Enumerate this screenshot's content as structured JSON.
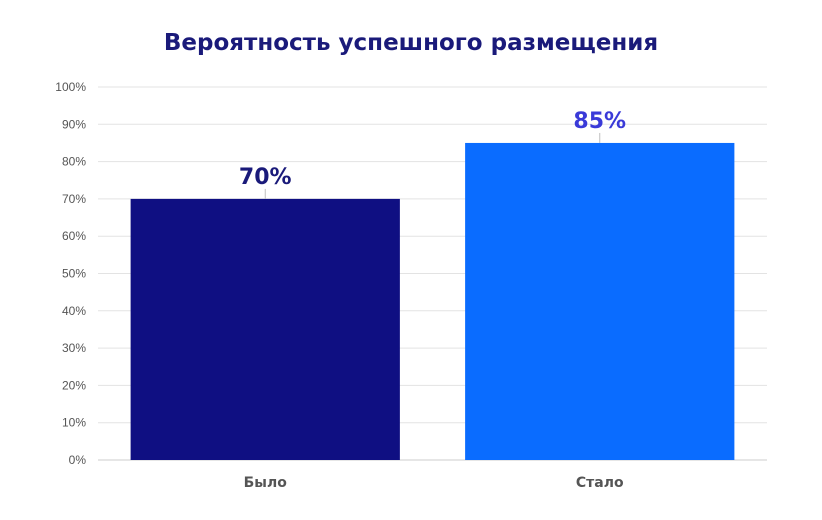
{
  "chart_data": {
    "type": "bar",
    "title": "Вероятность успешного размещения",
    "xlabel": "",
    "ylabel": "",
    "categories": [
      "Было",
      "Стало"
    ],
    "values": [
      70,
      85
    ],
    "data_labels": [
      "70%",
      "85%"
    ],
    "ylim": [
      0,
      100
    ],
    "yticks": [
      0,
      10,
      20,
      30,
      40,
      50,
      60,
      70,
      80,
      90,
      100
    ],
    "ytick_labels": [
      "0%",
      "10%",
      "20%",
      "30%",
      "40%",
      "50%",
      "60%",
      "70%",
      "80%",
      "90%",
      "100%"
    ],
    "grid": true,
    "legend": "none",
    "colors": {
      "bars": [
        "#0f0f82",
        "#0a6cff"
      ],
      "data_labels": [
        "#1a1a7a",
        "#3a3ad8"
      ],
      "title": "#1a1a7a",
      "grid": "#e3e3e3",
      "axis": "#cccccc",
      "tick_text": "#555555"
    }
  }
}
